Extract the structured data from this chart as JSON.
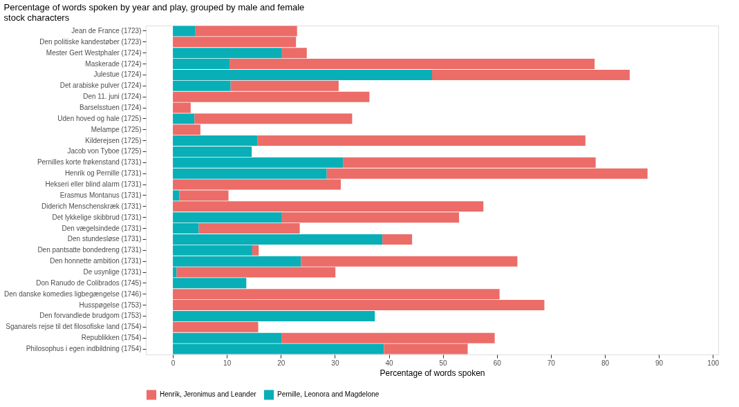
{
  "chart_data": {
    "type": "bar",
    "orientation": "horizontal",
    "stacked": true,
    "title": "Percentage of words spoken by year and play, grouped by male and female stock characters",
    "xlabel": "Percentage of words spoken",
    "categories": [
      "Jean de France (1723)",
      "Den politiske kandestøber (1723)",
      "Mester Gert Westphaler (1724)",
      "Maskerade (1724)",
      "Julestue (1724)",
      "Det arabiske pulver (1724)",
      "Den 11. juni (1724)",
      "Barselsstuen (1724)",
      "Uden hoved og hale (1725)",
      "Melampe (1725)",
      "Kilderejsen (1725)",
      "Jacob von Tyboe (1725)",
      "Pernilles korte frøkenstand (1731)",
      "Henrik og Pernille (1731)",
      "Hekseri eller blind alarm (1731)",
      "Erasmus Montanus (1731)",
      "Diderich Menschenskræk (1731)",
      "Det lykkelige skibbrud (1731)",
      "Den vægelsindede (1731)",
      "Den stundesløse (1731)",
      "Den pantsatte bondedreng (1731)",
      "Den honnette ambition (1731)",
      "De usynlige (1731)",
      "Don Ranudo de Colibrados (1745)",
      "Den danske komedies ligbegængelse (1746)",
      "Husspøgelse (1753)",
      "Den forvandlede brudgom (1753)",
      "Sganarels rejse til det filosofiske land (1754)",
      "Republikken (1754)",
      "Philosophus i egen indbildning (1754)"
    ],
    "series": [
      {
        "name": "Pernille, Leonora and Magdelone",
        "color": "#08afb7",
        "values": [
          4.1,
          null,
          20.2,
          10.5,
          48.0,
          10.7,
          null,
          null,
          4.0,
          null,
          15.7,
          14.6,
          31.5,
          28.5,
          null,
          1.2,
          null,
          20.2,
          4.8,
          38.8,
          14.7,
          23.7,
          0.7,
          13.6,
          null,
          null,
          37.4,
          null,
          20.1,
          39.1
        ]
      },
      {
        "name": "Henrik, Jeronimus and Leander",
        "color": "#ec6c68",
        "values": [
          18.9,
          22.8,
          4.6,
          67.6,
          36.6,
          20.0,
          36.4,
          3.3,
          29.2,
          5.1,
          60.7,
          null,
          46.8,
          59.4,
          31.1,
          9.1,
          57.5,
          32.8,
          18.7,
          5.5,
          1.2,
          40.1,
          29.4,
          null,
          60.5,
          68.8,
          null,
          15.8,
          39.5,
          15.5
        ]
      }
    ],
    "xlim": [
      -5,
      101
    ],
    "xticks": [
      0,
      10,
      20,
      30,
      40,
      50,
      60,
      70,
      80,
      90,
      100
    ],
    "grid": true,
    "legend": "bottom"
  }
}
